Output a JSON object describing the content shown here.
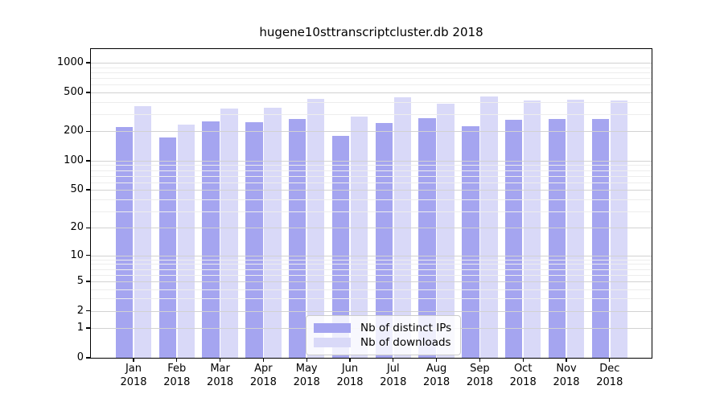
{
  "chart_data": {
    "type": "bar",
    "title": "hugene10sttranscriptcluster.db 2018",
    "categories": [
      "Jan",
      "Feb",
      "Mar",
      "Apr",
      "May",
      "Jun",
      "Jul",
      "Aug",
      "Sep",
      "Oct",
      "Nov",
      "Dec"
    ],
    "category_year": "2018",
    "series": [
      {
        "name": "Nb of distinct IPs",
        "color": "#a5a5f0",
        "values": [
          220,
          173,
          252,
          247,
          265,
          180,
          245,
          270,
          226,
          262,
          266,
          266
        ]
      },
      {
        "name": "Nb of downloads",
        "color": "#d9d9f8",
        "values": [
          362,
          233,
          341,
          347,
          429,
          283,
          445,
          382,
          452,
          413,
          421,
          414
        ]
      }
    ],
    "xlabel": "",
    "ylabel": "",
    "yscale": "log1p",
    "ylim": [
      0,
      1380
    ],
    "yticks": [
      1000,
      500,
      200,
      100,
      50,
      20,
      10,
      5,
      2,
      1,
      0
    ],
    "minor_gridlines": [
      3,
      4,
      6,
      7,
      8,
      9,
      30,
      40,
      60,
      70,
      80,
      90,
      300,
      400,
      600,
      700,
      800,
      900
    ],
    "grid": true,
    "legend": {
      "location": "lower center"
    },
    "colors": {
      "axis": "#000000",
      "major_grid": "#d2d2d2",
      "minor_grid": "#ededed",
      "background": "#ffffff"
    }
  }
}
